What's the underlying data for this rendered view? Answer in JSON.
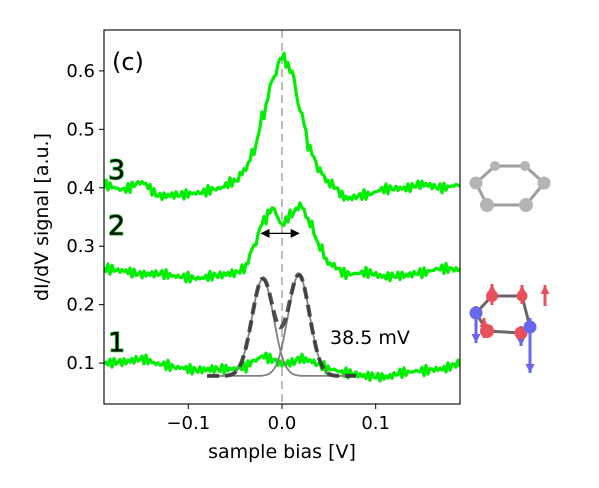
{
  "chart_data": {
    "type": "line",
    "panel_label": "(c)",
    "xlabel": "sample bias [V]",
    "ylabel": "dI/dV signal [a.u.]",
    "xlim": [
      -0.19,
      0.19
    ],
    "ylim": [
      0.03,
      0.67
    ],
    "xticks": [
      -0.1,
      0.0,
      0.1
    ],
    "xtick_labels": [
      "−0.1",
      "0.0",
      "0.1"
    ],
    "yticks": [
      0.1,
      0.2,
      0.3,
      0.4,
      0.5,
      0.6
    ],
    "ytick_labels": [
      "0.1",
      "0.2",
      "0.3",
      "0.4",
      "0.5",
      "0.6"
    ],
    "grid": false,
    "zero_line": 0.0,
    "annotation": "38.5 mV",
    "curve_labels": [
      "1",
      "2",
      "3"
    ],
    "colors": {
      "spectra": "#00ee00",
      "labels": "#22cc22",
      "fit": "#333333",
      "components": "#808080",
      "zero_line": "#bbbbbb",
      "red_atom": "#e8505b",
      "blue_atom": "#6666ee",
      "gray_atom": "#b4b4b4"
    },
    "x": [
      -0.19,
      -0.17,
      -0.15,
      -0.13,
      -0.11,
      -0.09,
      -0.07,
      -0.05,
      -0.04,
      -0.03,
      -0.02,
      -0.01,
      0.0,
      0.01,
      0.02,
      0.03,
      0.04,
      0.05,
      0.07,
      0.09,
      0.11,
      0.13,
      0.15,
      0.17,
      0.19
    ],
    "series": [
      {
        "name": "1",
        "values": [
          0.1,
          0.102,
          0.107,
          0.098,
          0.092,
          0.088,
          0.09,
          0.09,
          0.093,
          0.104,
          0.112,
          0.106,
          0.098,
          0.101,
          0.108,
          0.104,
          0.097,
          0.09,
          0.083,
          0.078,
          0.076,
          0.084,
          0.087,
          0.09,
          0.099
        ]
      },
      {
        "name": "2",
        "values": [
          0.262,
          0.258,
          0.252,
          0.253,
          0.248,
          0.245,
          0.25,
          0.254,
          0.262,
          0.3,
          0.343,
          0.365,
          0.337,
          0.355,
          0.37,
          0.34,
          0.3,
          0.27,
          0.252,
          0.255,
          0.248,
          0.25,
          0.255,
          0.262,
          0.26
        ]
      },
      {
        "name": "3",
        "values": [
          0.405,
          0.397,
          0.409,
          0.386,
          0.388,
          0.391,
          0.398,
          0.411,
          0.43,
          0.463,
          0.525,
          0.585,
          0.625,
          0.6,
          0.53,
          0.465,
          0.43,
          0.408,
          0.382,
          0.388,
          0.398,
          0.399,
          0.406,
          0.4,
          0.405
        ]
      }
    ],
    "fit": {
      "baseline": 0.078,
      "range": [
        -0.08,
        0.08
      ],
      "peaks": [
        {
          "center": -0.0205,
          "amplitude": 0.166,
          "sigma": 0.0115
        },
        {
          "center": 0.018,
          "amplitude": 0.173,
          "sigma": 0.0115
        }
      ]
    },
    "peak_separation_marker": [
      -0.022,
      0.018
    ],
    "peak_separation_y": 0.322
  }
}
